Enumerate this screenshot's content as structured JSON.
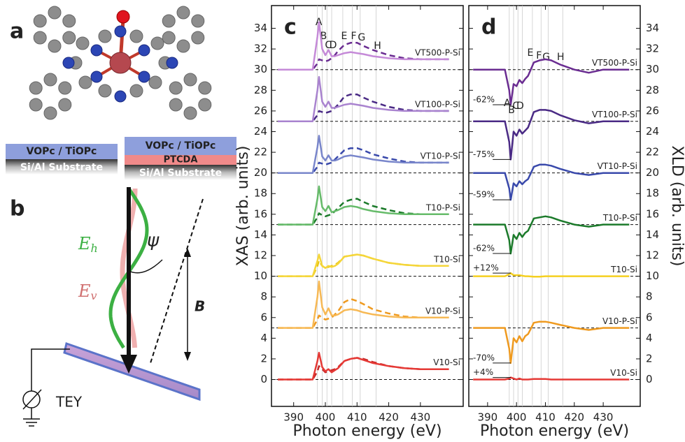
{
  "figure": {
    "panel_labels": [
      "a",
      "b"
    ],
    "stack_left": [
      "VOPc / TiOPc",
      "Si/Al Substrate"
    ],
    "stack_right": [
      "VOPc / TiOPc",
      "PTCDA",
      "Si/Al Substrate"
    ],
    "symbols": {
      "E_h": [
        "E",
        "h"
      ],
      "E_v": [
        "E",
        "v"
      ],
      "psi": "ψ",
      "B": "B"
    },
    "detector": "TEY"
  },
  "chart_data": [
    {
      "type": "line",
      "panel_label": "c",
      "ylabel": "XAS (arb. units)",
      "xlabel": "Photon energy (eV)",
      "x": [
        385,
        396,
        397.5,
        398,
        399,
        400,
        401,
        402,
        403,
        404,
        406,
        408,
        410,
        412,
        415,
        420,
        425,
        430,
        439
      ],
      "xlim": [
        383,
        443.5
      ],
      "xticks": [
        390,
        400,
        410,
        420,
        430
      ],
      "ylim": [
        -2.6,
        36.2
      ],
      "yticks": [
        0,
        2,
        4,
        6,
        8,
        10,
        12,
        14,
        16,
        18,
        20,
        22,
        24,
        26,
        28,
        30,
        32,
        34
      ],
      "features": [
        {
          "label": "A",
          "x": 397.5
        },
        {
          "label": "B",
          "x": 399
        },
        {
          "label": "C",
          "x": 400.5
        },
        {
          "label": "D",
          "x": 402
        },
        {
          "label": "E",
          "x": 405.5
        },
        {
          "label": "F",
          "x": 408.5
        },
        {
          "label": "G",
          "x": 411
        },
        {
          "label": "H",
          "x": 416
        }
      ],
      "series": [
        {
          "name": "V10-Si",
          "color": "#e53935",
          "dashed_color": "#c62828",
          "offset": 0,
          "values": [
            0,
            0,
            1.8,
            2.6,
            1.2,
            0.8,
            1.0,
            0.7,
            0.9,
            1.1,
            1.8,
            2.0,
            2.1,
            1.9,
            1.6,
            1.3,
            1.1,
            1.0,
            1.0
          ],
          "dashed_values": [
            0,
            0,
            0.8,
            1.3,
            1.0,
            0.7,
            0.8,
            0.9,
            1.0,
            1.2,
            1.8,
            2.0,
            2.1,
            2.0,
            1.7,
            1.3,
            1.1,
            1.0,
            1.0
          ]
        },
        {
          "name": "V10-P-Si",
          "color": "#f7b955",
          "dashed_color": "#ef9a1f",
          "offset": 5,
          "values": [
            5,
            5,
            8,
            9.5,
            7,
            6.3,
            6.9,
            6.2,
            6.2,
            6.3,
            6.7,
            6.8,
            6.7,
            6.5,
            6.3,
            6.1,
            6,
            6,
            6
          ],
          "dashed_values": [
            5,
            5,
            5.8,
            6.2,
            6,
            5.8,
            5.9,
            6,
            6.3,
            6.6,
            7.5,
            7.8,
            7.6,
            7.3,
            6.8,
            6.4,
            6.1,
            6,
            6
          ]
        },
        {
          "name": "T10-Si",
          "color": "#f5d63a",
          "dashed_color": "#e8c410",
          "offset": 10,
          "values": [
            10,
            10,
            11.5,
            12.1,
            11,
            10.8,
            11,
            10.9,
            11,
            11.2,
            11.9,
            12,
            12.1,
            12,
            11.7,
            11.3,
            11.1,
            11,
            11
          ],
          "dashed_values": [
            10,
            10,
            11,
            11.5,
            11,
            10.8,
            10.9,
            11,
            11.1,
            11.3,
            11.9,
            12,
            12.1,
            12,
            11.7,
            11.3,
            11.1,
            11,
            11
          ]
        },
        {
          "name": "T10-P-Si",
          "color": "#66bb6a",
          "dashed_color": "#1b7a2a",
          "offset": 15,
          "values": [
            15,
            15,
            17.5,
            18.7,
            16.7,
            16.3,
            16.8,
            16.2,
            16.3,
            16.4,
            16.7,
            16.8,
            16.7,
            16.5,
            16.3,
            16.1,
            16,
            16,
            16
          ],
          "dashed_values": [
            15,
            15,
            15.7,
            16.1,
            15.9,
            15.8,
            15.9,
            16,
            16.3,
            16.6,
            17.2,
            17.4,
            17.5,
            17.2,
            16.8,
            16.4,
            16.1,
            16,
            16
          ]
        },
        {
          "name": "VT10-P-Si",
          "color": "#7986cb",
          "dashed_color": "#3949ab",
          "offset": 20,
          "values": [
            20,
            20,
            22.5,
            23.6,
            21.6,
            21.2,
            21.7,
            21.2,
            21.2,
            21.3,
            21.6,
            21.7,
            21.6,
            21.5,
            21.3,
            21.1,
            21,
            21,
            21
          ],
          "dashed_values": [
            20,
            20,
            20.6,
            21,
            20.9,
            20.8,
            20.9,
            21,
            21.3,
            21.6,
            22.2,
            22.4,
            22.4,
            22.2,
            21.8,
            21.4,
            21.1,
            21,
            21
          ]
        },
        {
          "name": "VT100-P-Si",
          "color": "#a983cf",
          "dashed_color": "#4a2a85",
          "offset": 25,
          "values": [
            25,
            25,
            28,
            29.3,
            26.9,
            26.4,
            26.9,
            26.3,
            26.3,
            26.4,
            26.6,
            26.7,
            26.6,
            26.5,
            26.3,
            26.1,
            26,
            26,
            26
          ],
          "dashed_values": [
            25,
            25,
            25.6,
            26,
            25.9,
            25.8,
            25.9,
            26,
            26.3,
            26.6,
            27.4,
            27.6,
            27.6,
            27.3,
            26.9,
            26.4,
            26.1,
            26,
            26
          ]
        },
        {
          "name": "VT500-P-Si",
          "color": "#c58ad8",
          "dashed_color": "#6a2c91",
          "offset": 30,
          "values": [
            30,
            30,
            33.2,
            34.6,
            32,
            31.4,
            31.9,
            31.3,
            31.3,
            31.4,
            31.6,
            31.7,
            31.6,
            31.5,
            31.3,
            31.1,
            31,
            31,
            31
          ],
          "dashed_values": [
            30,
            30,
            30.6,
            31,
            30.9,
            30.8,
            30.9,
            31.1,
            31.4,
            31.8,
            32.4,
            32.6,
            32.6,
            32.3,
            31.9,
            31.4,
            31.1,
            31,
            31
          ]
        }
      ]
    },
    {
      "type": "line",
      "panel_label": "d",
      "ylabel": "XLD (arb. units)",
      "xlabel": "Photon energy (eV)",
      "x": [
        385,
        396,
        397.5,
        398,
        399,
        400,
        401,
        402,
        403,
        404,
        406,
        408,
        410,
        412,
        415,
        420,
        425,
        430,
        439
      ],
      "xlim": [
        383.5,
        442.8
      ],
      "xticks": [
        390,
        400,
        410,
        420,
        430
      ],
      "ylim": [
        -2.6,
        36.2
      ],
      "yticks": [
        0,
        2,
        4,
        6,
        8,
        10,
        12,
        14,
        16,
        18,
        20,
        22,
        24,
        26,
        28,
        30,
        32,
        34
      ],
      "features": [
        {
          "label": "A",
          "x": 397.5
        },
        {
          "label": "B",
          "x": 399
        },
        {
          "label": "C",
          "x": 400.5
        },
        {
          "label": "D",
          "x": 402
        },
        {
          "label": "E",
          "x": 405.5
        },
        {
          "label": "F",
          "x": 408.5
        },
        {
          "label": "G",
          "x": 411
        },
        {
          "label": "H",
          "x": 416
        }
      ],
      "series": [
        {
          "name": "V10-Si",
          "color": "#e53935",
          "offset": 0,
          "dip_label": "+4%",
          "values": [
            0,
            0,
            0.1,
            0.2,
            0.1,
            0,
            0.1,
            0,
            0,
            0,
            0.05,
            0.05,
            0.05,
            0,
            0,
            0,
            0,
            0,
            0
          ]
        },
        {
          "name": "V10-P-Si",
          "color": "#ef9a1f",
          "offset": 5,
          "dip_label": "-70%",
          "values": [
            5,
            5,
            3,
            1.6,
            4,
            3.6,
            4.2,
            3.7,
            4.2,
            4.4,
            5.5,
            5.6,
            5.6,
            5.5,
            5.3,
            5,
            4.8,
            5,
            5
          ]
        },
        {
          "name": "T10-Si",
          "color": "#f5d020",
          "offset": 10,
          "dip_label": "+12%",
          "values": [
            10,
            10,
            10.2,
            10.3,
            10.1,
            10.1,
            10.1,
            10.05,
            10,
            10,
            9.95,
            9.95,
            10,
            10,
            10,
            10,
            10,
            10,
            10
          ]
        },
        {
          "name": "T10-P-Si",
          "color": "#1b7a2a",
          "offset": 15,
          "dip_label": "-62%",
          "values": [
            15,
            15,
            13.5,
            12.2,
            14,
            13.6,
            14.2,
            13.8,
            14.2,
            14.4,
            15.6,
            15.7,
            15.8,
            15.7,
            15.4,
            15,
            14.8,
            15,
            15
          ]
        },
        {
          "name": "VT10-P-Si",
          "color": "#3949ab",
          "offset": 20,
          "dip_label": "-59%",
          "values": [
            20,
            20,
            18.5,
            17.4,
            19,
            18.7,
            19.2,
            18.9,
            19.2,
            19.4,
            20.6,
            20.8,
            20.8,
            20.7,
            20.4,
            20,
            19.8,
            20,
            20
          ]
        },
        {
          "name": "VT100-P-Si",
          "color": "#4a2a85",
          "offset": 25,
          "dip_label": "-75%",
          "values": [
            25,
            25,
            23,
            21.3,
            24,
            23.6,
            24.2,
            23.8,
            24.1,
            24.4,
            25.9,
            26.1,
            26.1,
            26,
            25.6,
            25.1,
            24.8,
            25,
            25
          ]
        },
        {
          "name": "VT500-P-Si",
          "color": "#6a2c91",
          "offset": 30,
          "dip_label": "-62%",
          "values": [
            30,
            30,
            28,
            26.6,
            28.6,
            28.4,
            29,
            28.7,
            29.1,
            29.4,
            30.7,
            30.9,
            31,
            30.9,
            30.5,
            30,
            29.7,
            30,
            30
          ]
        }
      ]
    }
  ]
}
